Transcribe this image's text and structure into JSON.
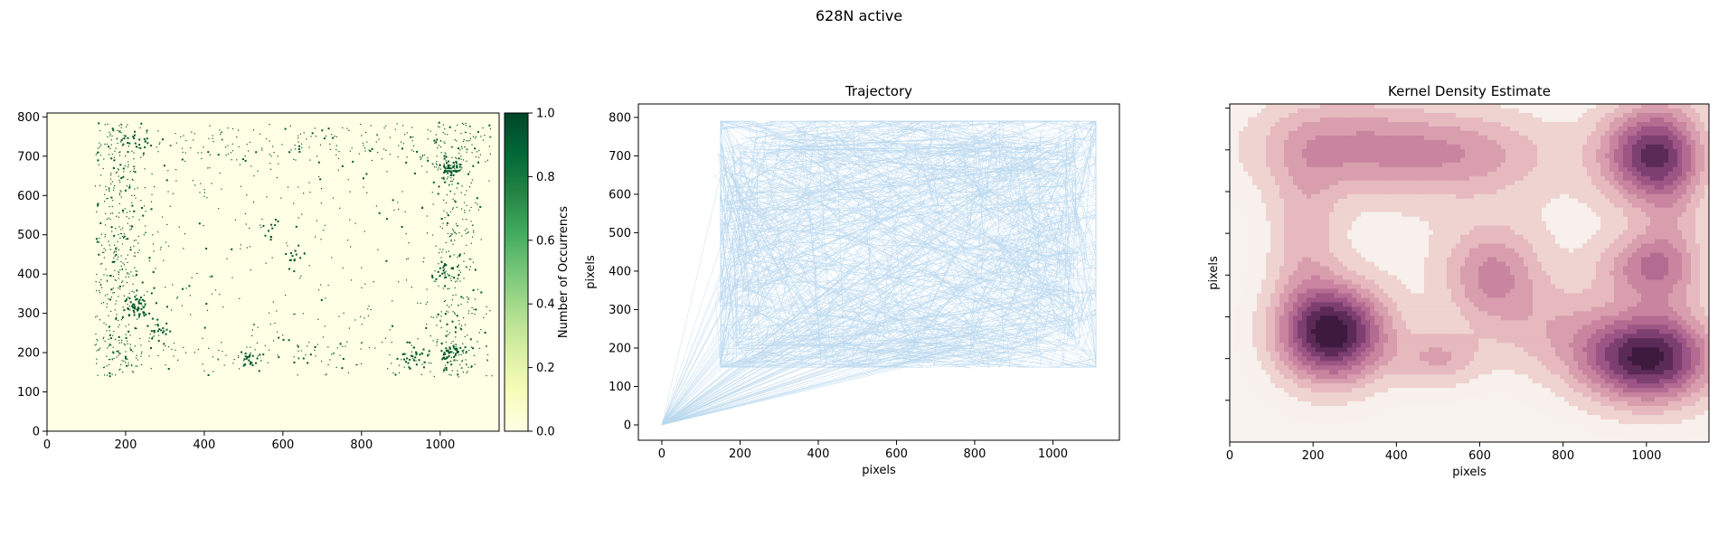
{
  "figure": {
    "suptitle": "628N active"
  },
  "chart_data": [
    {
      "type": "heatmap",
      "title": "",
      "xlabel": "",
      "ylabel": "",
      "xlim": [
        0,
        1150
      ],
      "ylim": [
        0,
        810
      ],
      "xticks": [
        0,
        200,
        400,
        600,
        800,
        1000
      ],
      "yticks": [
        0,
        100,
        200,
        300,
        400,
        500,
        600,
        700,
        800
      ],
      "colormap": [
        "#ffffe5",
        "#f7fcb9",
        "#d9f0a3",
        "#addd8e",
        "#78c679",
        "#41ab5d",
        "#238443",
        "#006837",
        "#004529"
      ],
      "background_color": "#ffffe5",
      "point_color": "#00562c",
      "colorbar": {
        "label": "Number of Occurrencs",
        "range": [
          0,
          1
        ],
        "ticks": [
          0.0,
          0.2,
          0.4,
          0.6,
          0.8,
          1.0
        ]
      },
      "occupied_region": {
        "x": [
          120,
          1130
        ],
        "y": [
          140,
          790
        ]
      },
      "clusters": [
        {
          "x": 225,
          "y": 320,
          "count": 45
        },
        {
          "x": 280,
          "y": 265,
          "count": 20
        },
        {
          "x": 1025,
          "y": 670,
          "count": 45
        },
        {
          "x": 1030,
          "y": 200,
          "count": 35
        },
        {
          "x": 930,
          "y": 190,
          "count": 25
        },
        {
          "x": 520,
          "y": 183,
          "count": 18
        },
        {
          "x": 1010,
          "y": 410,
          "count": 18
        },
        {
          "x": 230,
          "y": 740,
          "count": 18
        },
        {
          "x": 625,
          "y": 450,
          "count": 14
        },
        {
          "x": 575,
          "y": 520,
          "count": 10
        }
      ]
    },
    {
      "type": "line",
      "title": "Trajectory",
      "xlabel": "pixels",
      "ylabel": "pixels",
      "xlim": [
        -60,
        1170
      ],
      "ylim": [
        -40,
        835
      ],
      "xticks": [
        0,
        200,
        400,
        600,
        800,
        1000
      ],
      "yticks": [
        0,
        100,
        200,
        300,
        400,
        500,
        600,
        700,
        800
      ],
      "line_color": "#b9d7ee",
      "start_point": [
        0,
        0
      ],
      "arena": {
        "x": [
          150,
          1110
        ],
        "y": [
          150,
          790
        ]
      }
    },
    {
      "type": "heatmap",
      "title": "Kernel Density Estimate",
      "xlabel": "pixels",
      "ylabel": "pixels",
      "xlim": [
        0,
        1150
      ],
      "ylim": [
        0,
        810
      ],
      "xticks": [
        0,
        200,
        400,
        600,
        800,
        1000
      ],
      "levels": [
        "#f7f0ec",
        "#efd3d0",
        "#e6b9be",
        "#d89eae",
        "#c9849f",
        "#b46b91",
        "#9c5584",
        "#7c3f70",
        "#5b2a56",
        "#3e1b3e"
      ],
      "background_color": "#f7f2ee",
      "kernels": [
        {
          "x": 250,
          "y": 260,
          "sx": 90,
          "sy": 80,
          "w": 1.0
        },
        {
          "x": 1000,
          "y": 200,
          "sx": 110,
          "sy": 75,
          "w": 0.95
        },
        {
          "x": 1010,
          "y": 690,
          "sx": 85,
          "sy": 80,
          "w": 0.78
        },
        {
          "x": 1000,
          "y": 420,
          "sx": 80,
          "sy": 55,
          "w": 0.42
        },
        {
          "x": 280,
          "y": 710,
          "sx": 160,
          "sy": 80,
          "w": 0.38
        },
        {
          "x": 630,
          "y": 400,
          "sx": 80,
          "sy": 80,
          "w": 0.4
        },
        {
          "x": 570,
          "y": 690,
          "sx": 150,
          "sy": 70,
          "w": 0.3
        },
        {
          "x": 500,
          "y": 200,
          "sx": 70,
          "sy": 45,
          "w": 0.3
        },
        {
          "x": 780,
          "y": 270,
          "sx": 120,
          "sy": 80,
          "w": 0.22
        },
        {
          "x": 180,
          "y": 480,
          "sx": 60,
          "sy": 160,
          "w": 0.25
        },
        {
          "x": 1060,
          "y": 520,
          "sx": 60,
          "sy": 200,
          "w": 0.2
        },
        {
          "x": 620,
          "y": 540,
          "sx": 260,
          "sy": 180,
          "w": 0.07
        }
      ]
    }
  ]
}
